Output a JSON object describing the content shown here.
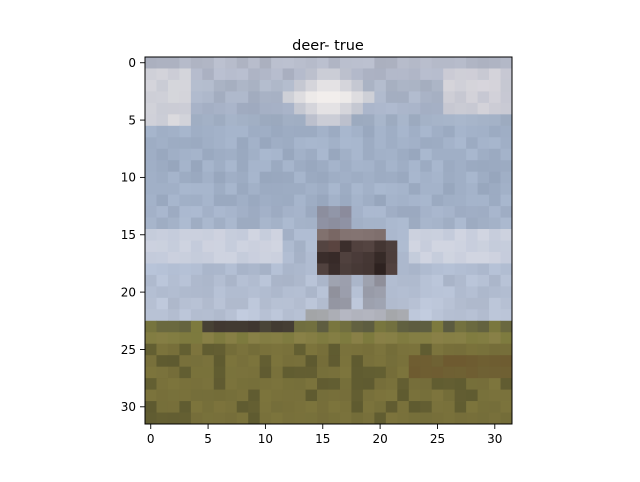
{
  "figure": {
    "title": "deer- true"
  },
  "axes": {
    "x_ticks": [
      "0",
      "5",
      "10",
      "15",
      "20",
      "25",
      "30"
    ],
    "y_ticks": [
      "0",
      "5",
      "10",
      "15",
      "20",
      "25",
      "30"
    ],
    "x_range": [
      -0.5,
      31.5
    ],
    "y_range": [
      31.5,
      -0.5
    ],
    "grid": false
  },
  "image": {
    "subject": "deer standing in a field under a cloudy sky (32x32 pixelated)",
    "palette": {
      "sky_upper": "#b4b9c8",
      "sky_mid": "#a0afc6",
      "sky_lower": "#b9c3d6",
      "cloud": "#f2eeec",
      "horizon_band": "#5a5a40",
      "grass_top": "#7d7a3e",
      "grass": "#716a38",
      "grass_dark": "#5e5a30",
      "deer_body": "#6e5c58",
      "deer_dark": "#2e2220",
      "deer_legs": "#8c8c96"
    }
  }
}
